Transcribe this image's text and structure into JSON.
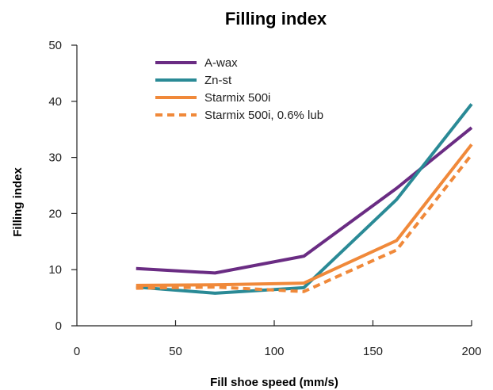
{
  "chart_data": {
    "type": "line",
    "title": "Filling index",
    "xlabel": "Fill shoe speed (mm/s)",
    "ylabel": "Filling index",
    "xlim": [
      0,
      200
    ],
    "ylim": [
      0,
      50
    ],
    "xticks": [
      0,
      50,
      100,
      150,
      200
    ],
    "yticks": [
      0,
      10,
      20,
      30,
      40,
      50
    ],
    "xtick_labels": [
      "0",
      "50",
      "100",
      "150",
      "200"
    ],
    "ytick_labels": [
      "0",
      "10",
      "20",
      "30",
      "40",
      "50"
    ],
    "grid": false,
    "legend_position": "top-left",
    "x": [
      30,
      70,
      115,
      162,
      200
    ],
    "series": [
      {
        "name": "A-wax",
        "color": "#6a2c83",
        "style": "solid",
        "values": [
          10.2,
          9.4,
          12.4,
          24.5,
          35.3
        ]
      },
      {
        "name": "Zn-st",
        "color": "#2a8a96",
        "style": "solid",
        "values": [
          6.9,
          5.8,
          6.8,
          22.5,
          39.5
        ]
      },
      {
        "name": "Starmix 500i",
        "color": "#f0893a",
        "style": "solid",
        "values": [
          7.2,
          7.3,
          7.6,
          15.2,
          32.3
        ]
      },
      {
        "name": "Starmix 500i, 0.6% lub",
        "color": "#f0893a",
        "style": "dashed",
        "values": [
          6.7,
          6.9,
          6.1,
          13.5,
          30.5
        ]
      }
    ]
  }
}
